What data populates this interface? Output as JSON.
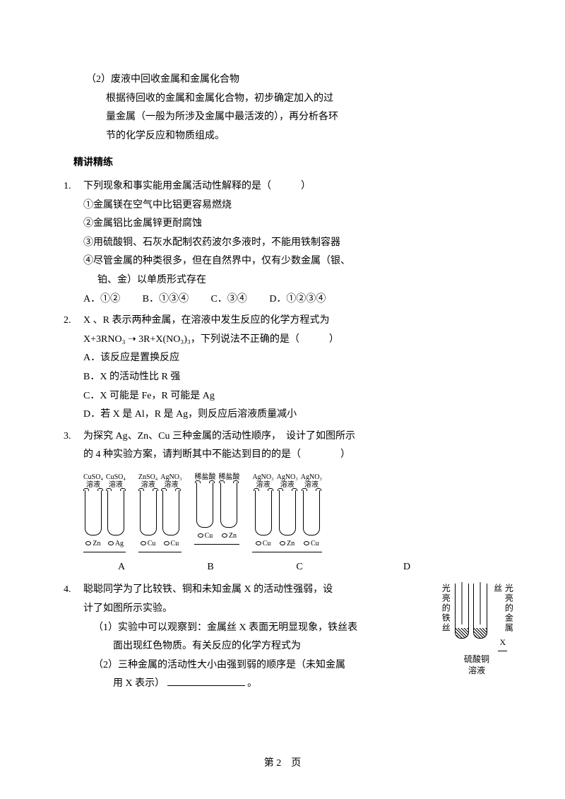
{
  "intro": {
    "line1": "（2）废液中回收金属和金属化合物",
    "line2": "根据待回收的金属和金属化合物，初步确定加入的过",
    "line3": "量金属（一般为所涉及金属中最活泼的），再分析各环",
    "line4": "节的化学反应和物质组成。"
  },
  "sectionTitle": "精讲精练",
  "q1": {
    "num": "1.",
    "stem": "下列现象和事实能用金属活动性解释的是（　　　）",
    "s1": "①金属镁在空气中比铝更容易燃烧",
    "s2": "②金属铝比金属锌更耐腐蚀",
    "s3": "③用硫酸铜、石灰水配制农药波尔多液时，不能用铁制容器",
    "s4a": "④尽管金属的种类很多，但在自然界中，仅有少数金属（银、",
    "s4b": "铂、金）以单质形式存在",
    "optA": "A．①②",
    "optB": "B．①③④",
    "optC": "C．③④",
    "optD": "D．①②③④"
  },
  "q2": {
    "num": "2.",
    "stem": "X 、R 表示两种金属，在溶液中发生反应的化学方程式为",
    "eq": "X+3RNO₃ ➝ 3R+X(NO₃)₃，下列说法不正确的是（　　　）",
    "a": "A．该反应是置换反应",
    "b": "B．X 的活动性比 R 强",
    "c": "C．X 可能是 Fe，R 可能是 Ag",
    "d": "D．若 X 是 Al，R 是 Ag，则反应后溶液质量减小"
  },
  "q3": {
    "num": "3.",
    "stem1": "为探究 Ag、Zn、Cu 三种金属的活动性顺序，　设计了如图所示",
    "stem2": "的 4 种实验方案，请判断其中不能达到目的的是（　　　　）",
    "groups": [
      {
        "labels": [
          "CuSO₄\n溶液",
          "CuSO₄\n溶液"
        ],
        "metals": [
          "Zn",
          "Ag"
        ],
        "key": "A"
      },
      {
        "labels": [
          "ZnSO₄\n溶液",
          "AgNO₃\n溶液"
        ],
        "metals": [
          "Cu",
          "Cu"
        ],
        "key": "B"
      },
      {
        "labels": [
          "稀盐酸",
          "稀盐酸"
        ],
        "metals": [
          "Cu",
          "Zn"
        ],
        "key": "C"
      },
      {
        "labels": [
          "AgNO₃\n溶液",
          "AgNO₃\n溶液",
          "AgNO₃\n溶液"
        ],
        "metals": [
          "Cu",
          "Zn",
          "Cu"
        ],
        "key": "D"
      }
    ]
  },
  "q4": {
    "num": "4.",
    "stem1": "聪聪同学为了比较铁、铜和未知金属 X 的活动性强弱，设",
    "stem2": "计了如图所示实验。",
    "p1a": "（1）实验中可以观察到：金属丝 X 表面无明显现象，铁丝表",
    "p1b": "面出现红色物质。有关反应的化学方程式为",
    "p2a": "（2）三种金属的活动性大小由强到弱的顺序是（未知金属",
    "p2b": "用 X 表示）",
    "p2c": "。",
    "fig": {
      "left": "光亮的铁丝",
      "right1": "光亮的金属丝",
      "rightX": "X",
      "bottom": "硫酸铜\n溶液"
    }
  },
  "pageNum": "第 2　页"
}
